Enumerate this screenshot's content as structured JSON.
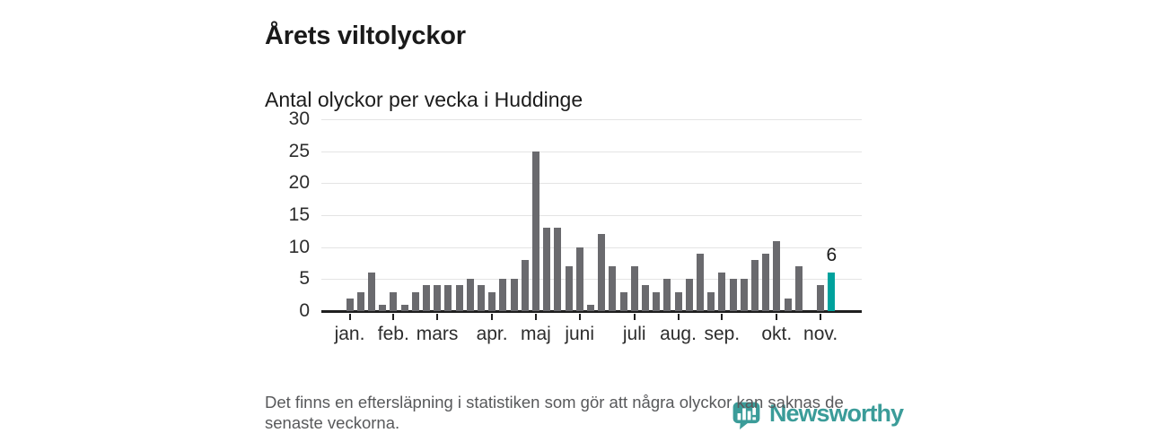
{
  "chart_data": {
    "type": "bar",
    "title": "Årets viltolyckor",
    "subtitle": "Antal olyckor per vecka i Huddinge",
    "x_unit": "vecka",
    "values": [
      2,
      3,
      6,
      1,
      3,
      1,
      3,
      4,
      4,
      4,
      4,
      5,
      4,
      3,
      5,
      5,
      8,
      25,
      13,
      13,
      7,
      10,
      1,
      12,
      7,
      3,
      7,
      4,
      3,
      5,
      3,
      5,
      9,
      3,
      6,
      5,
      5,
      8,
      9,
      11,
      2,
      7,
      0,
      4,
      6
    ],
    "ylim": [
      0,
      30
    ],
    "yticks": [
      0,
      5,
      10,
      15,
      20,
      25,
      30
    ],
    "grid": "horizontal",
    "legend": "none",
    "month_ticks": [
      {
        "label": "jan.",
        "index": 0
      },
      {
        "label": "feb.",
        "index": 4
      },
      {
        "label": "mars",
        "index": 8
      },
      {
        "label": "apr.",
        "index": 13
      },
      {
        "label": "maj",
        "index": 17
      },
      {
        "label": "juni",
        "index": 21
      },
      {
        "label": "juli",
        "index": 26
      },
      {
        "label": "aug.",
        "index": 30
      },
      {
        "label": "sep.",
        "index": 34
      },
      {
        "label": "okt.",
        "index": 39
      },
      {
        "label": "nov.",
        "index": 43
      }
    ],
    "highlight_index": 44,
    "annotation": {
      "index": 44,
      "label": "6"
    },
    "colors": {
      "bar": "#6a6a6e",
      "highlight": "#00a29d",
      "gridline": "#e4e4e4",
      "axis": "#1f1f1f"
    }
  },
  "footer": {
    "note_line1": "Det finns en eftersläpning i statistiken som gör att några olyckor kan saknas de",
    "note_line2": "senaste veckorna.",
    "brand": "Newsworthy",
    "brand_color": "#3b9c99"
  }
}
